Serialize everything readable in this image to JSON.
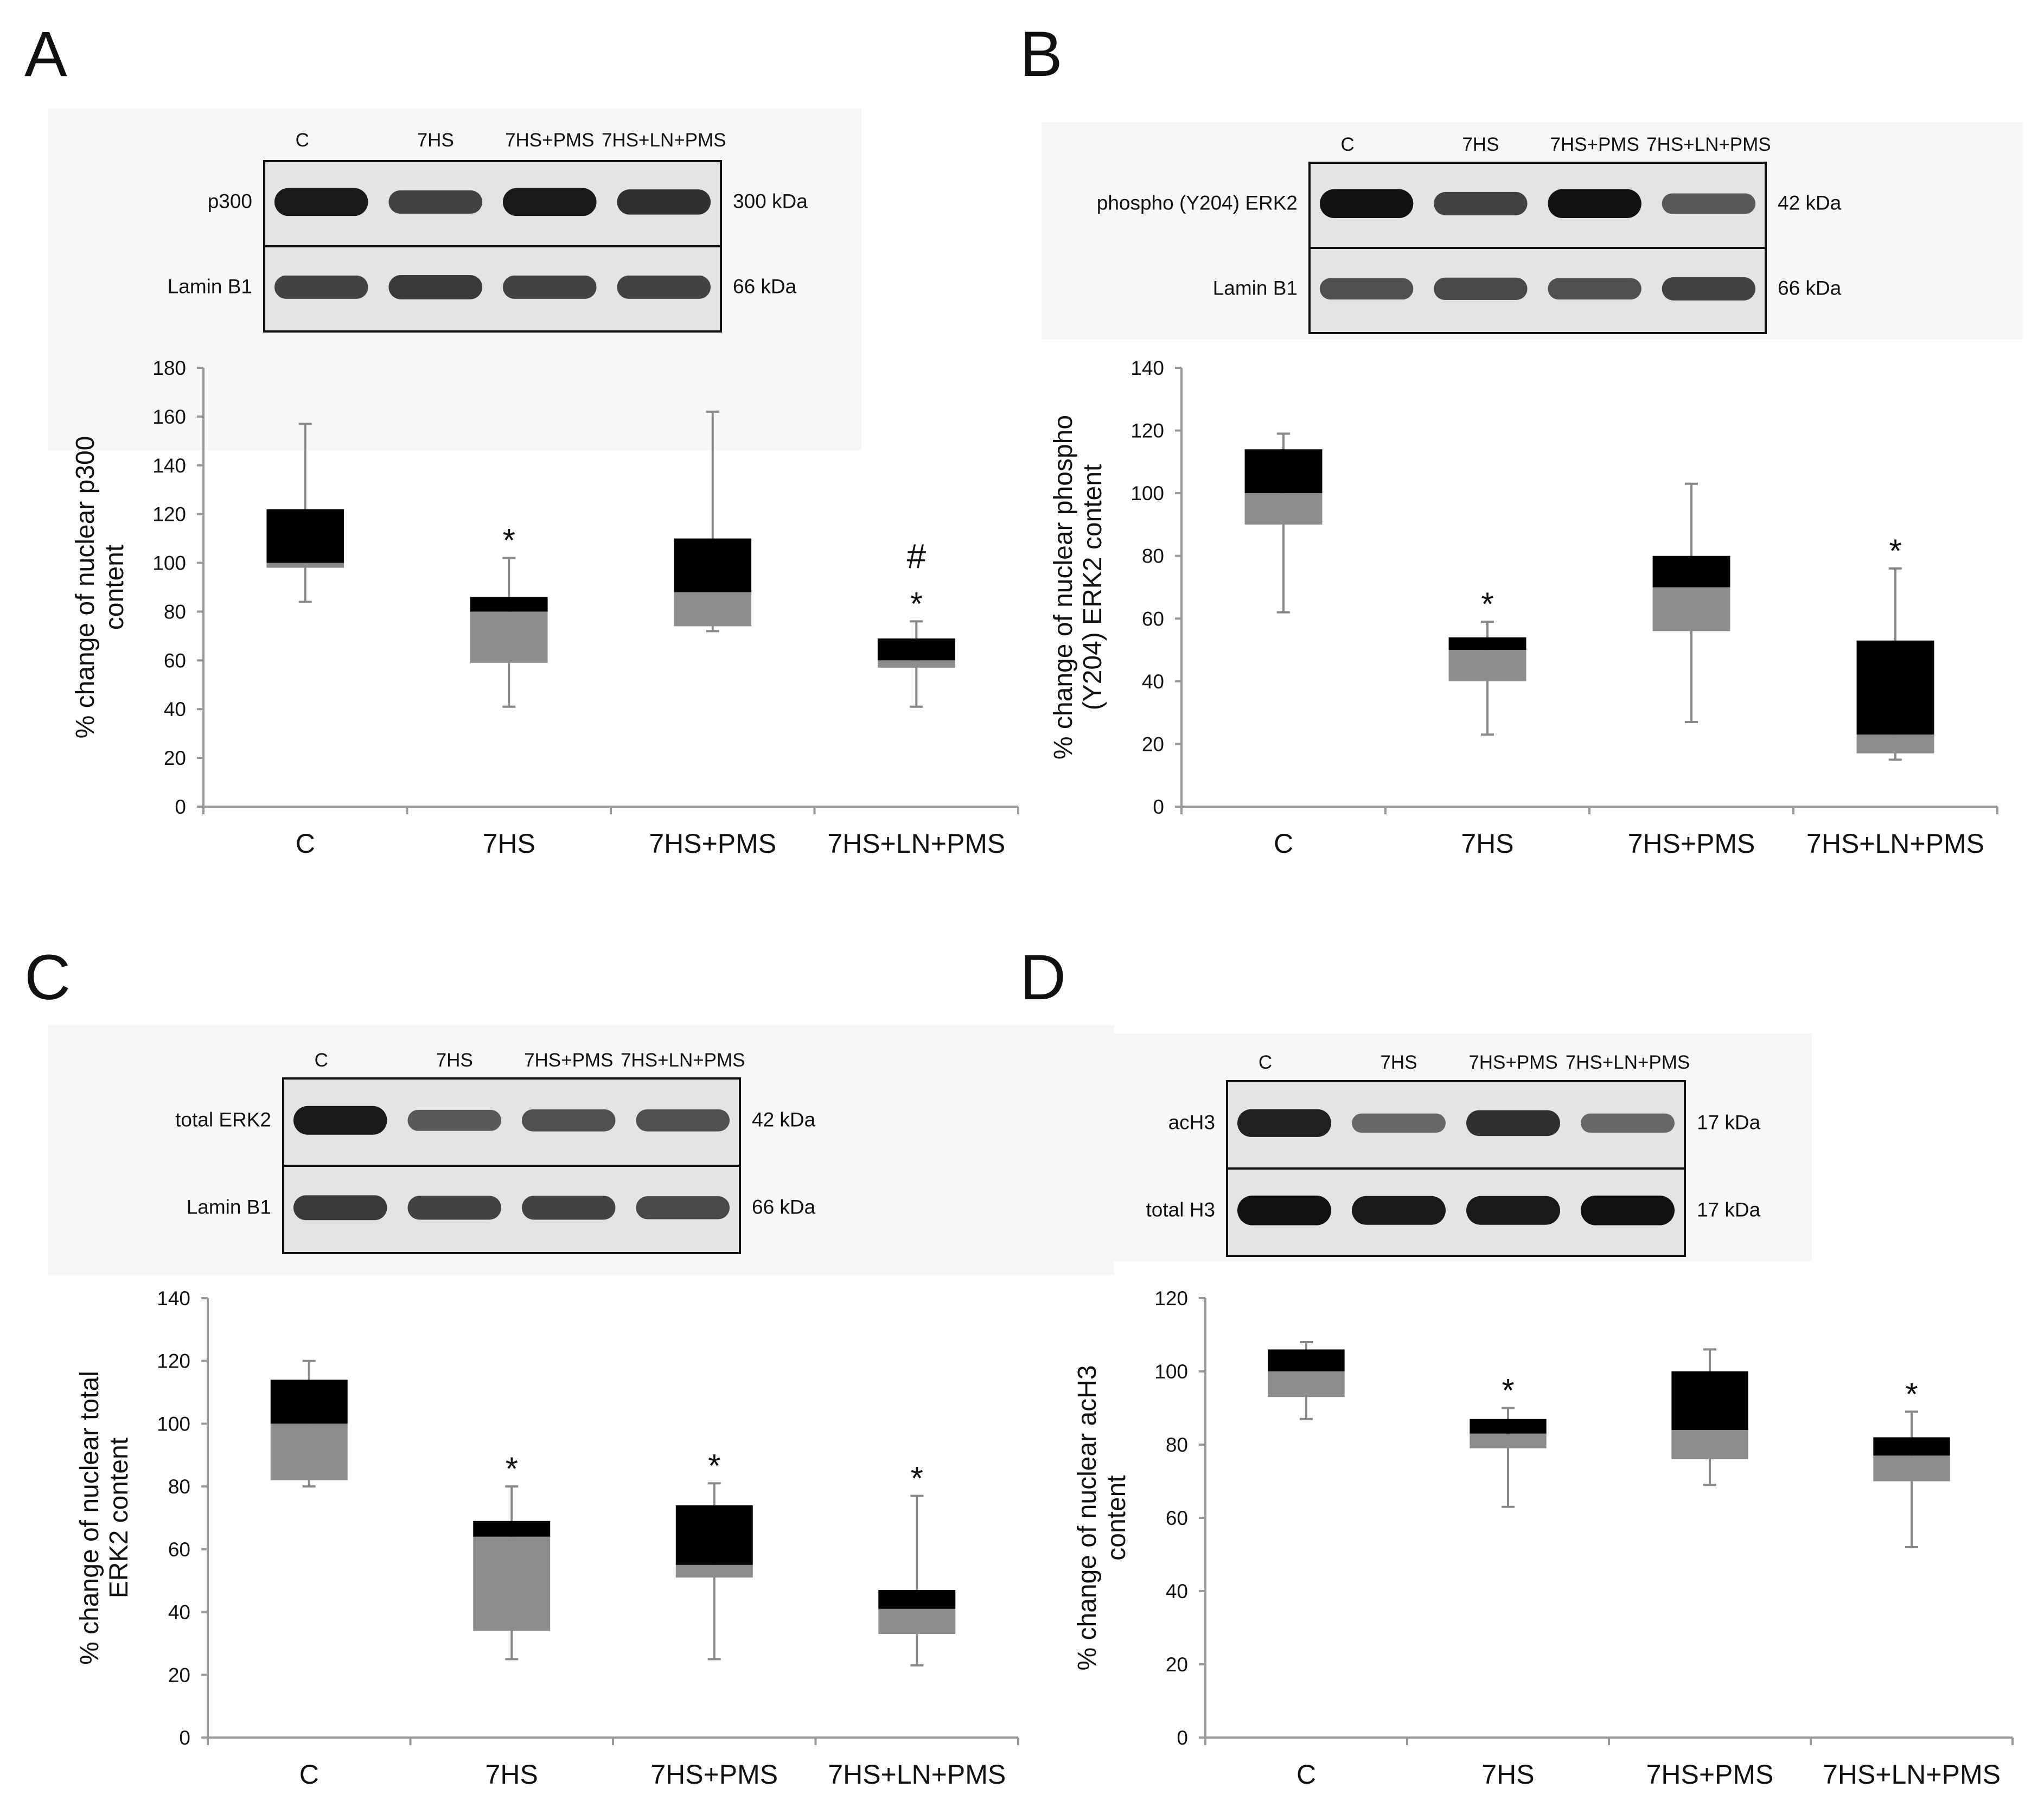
{
  "colors": {
    "q3_fill": "#000000",
    "q1_fill": "#8c8c8c",
    "axis": "#999999",
    "whisker": "#888888",
    "blot_bg": "#f7f7f7",
    "blot_lane_bg": "#e4e4e4",
    "band": "#111111"
  },
  "panels": [
    {
      "letter": "A",
      "lanes": [
        "C",
        "7HS",
        "7HS+PMS",
        "7HS+LN+PMS"
      ],
      "blot_rows": [
        {
          "protein": "p300",
          "kda": "300 kDa",
          "intensity": [
            0.95,
            0.7,
            0.95,
            0.8
          ]
        },
        {
          "protein": "Lamin B1",
          "kda": "66 kDa",
          "intensity": [
            0.7,
            0.75,
            0.7,
            0.7
          ]
        }
      ]
    },
    {
      "letter": "B",
      "lanes": [
        "C",
        "7HS",
        "7HS+PMS",
        "7HS+LN+PMS"
      ],
      "blot_rows": [
        {
          "protein": "phospho (Y204) ERK2",
          "kda": "42 kDa",
          "intensity": [
            1.0,
            0.7,
            1.0,
            0.55
          ]
        },
        {
          "protein": "Lamin B1",
          "kda": "66 kDa",
          "intensity": [
            0.6,
            0.65,
            0.6,
            0.7
          ]
        }
      ]
    },
    {
      "letter": "C",
      "lanes": [
        "C",
        "7HS",
        "7HS+PMS",
        "7HS+LN+PMS"
      ],
      "blot_rows": [
        {
          "protein": "total ERK2",
          "kda": "42 kDa",
          "intensity": [
            0.95,
            0.55,
            0.6,
            0.6
          ]
        },
        {
          "protein": "Lamin B1",
          "kda": "66 kDa",
          "intensity": [
            0.75,
            0.7,
            0.7,
            0.65
          ]
        }
      ]
    },
    {
      "letter": "D",
      "lanes": [
        "C",
        "7HS",
        "7HS+PMS",
        "7HS+LN+PMS"
      ],
      "blot_rows": [
        {
          "protein": "acH3",
          "kda": "17 kDa",
          "intensity": [
            0.9,
            0.45,
            0.8,
            0.45
          ]
        },
        {
          "protein": "total H3",
          "kda": "17 kDa",
          "intensity": [
            1.0,
            0.95,
            0.95,
            1.0
          ]
        }
      ]
    }
  ],
  "chart_data": [
    {
      "type": "box",
      "panel": "A",
      "ylabel_lines": [
        "% change of nuclear p300",
        "content"
      ],
      "ylim": [
        0,
        180
      ],
      "yticks": [
        0,
        20,
        40,
        60,
        80,
        100,
        120,
        140,
        160,
        180
      ],
      "categories": [
        "C",
        "7HS",
        "7HS+PMS",
        "7HS+LN+PMS"
      ],
      "boxes": [
        {
          "min": 84,
          "q1": 98,
          "median": 100,
          "q3": 122,
          "max": 157,
          "marks": []
        },
        {
          "min": 41,
          "q1": 59,
          "median": 80,
          "q3": 86,
          "max": 102,
          "marks": [
            "*"
          ]
        },
        {
          "min": 72,
          "q1": 74,
          "median": 88,
          "q3": 110,
          "max": 162,
          "marks": []
        },
        {
          "min": 41,
          "q1": 57,
          "median": 60,
          "q3": 69,
          "max": 76,
          "marks": [
            "*",
            "#"
          ]
        }
      ]
    },
    {
      "type": "box",
      "panel": "B",
      "ylabel_lines": [
        "% change of nuclear phospho",
        "(Y204) ERK2 content"
      ],
      "ylim": [
        0,
        140
      ],
      "yticks": [
        0,
        20,
        40,
        60,
        80,
        100,
        120,
        140
      ],
      "categories": [
        "C",
        "7HS",
        "7HS+PMS",
        "7HS+LN+PMS"
      ],
      "boxes": [
        {
          "min": 62,
          "q1": 90,
          "median": 100,
          "q3": 114,
          "max": 119,
          "marks": []
        },
        {
          "min": 23,
          "q1": 40,
          "median": 50,
          "q3": 54,
          "max": 59,
          "marks": [
            "*"
          ]
        },
        {
          "min": 27,
          "q1": 56,
          "median": 70,
          "q3": 80,
          "max": 103,
          "marks": []
        },
        {
          "min": 15,
          "q1": 17,
          "median": 23,
          "q3": 53,
          "max": 76,
          "marks": [
            "*"
          ]
        }
      ]
    },
    {
      "type": "box",
      "panel": "C",
      "ylabel_lines": [
        "% change of nuclear total",
        "ERK2  content"
      ],
      "ylim": [
        0,
        140
      ],
      "yticks": [
        0,
        20,
        40,
        60,
        80,
        100,
        120,
        140
      ],
      "categories": [
        "C",
        "7HS",
        "7HS+PMS",
        "7HS+LN+PMS"
      ],
      "boxes": [
        {
          "min": 80,
          "q1": 82,
          "median": 100,
          "q3": 114,
          "max": 120,
          "marks": []
        },
        {
          "min": 25,
          "q1": 34,
          "median": 64,
          "q3": 69,
          "max": 80,
          "marks": [
            "*"
          ]
        },
        {
          "min": 25,
          "q1": 51,
          "median": 55,
          "q3": 74,
          "max": 81,
          "marks": [
            "*"
          ]
        },
        {
          "min": 23,
          "q1": 33,
          "median": 41,
          "q3": 47,
          "max": 77,
          "marks": [
            "*"
          ]
        }
      ]
    },
    {
      "type": "box",
      "panel": "D",
      "ylabel_lines": [
        "% change of nuclear acH3",
        "content"
      ],
      "ylim": [
        0,
        120
      ],
      "yticks": [
        0,
        20,
        40,
        60,
        80,
        100,
        120
      ],
      "categories": [
        "C",
        "7HS",
        "7HS+PMS",
        "7HS+LN+PMS"
      ],
      "boxes": [
        {
          "min": 87,
          "q1": 93,
          "median": 100,
          "q3": 106,
          "max": 108,
          "marks": []
        },
        {
          "min": 63,
          "q1": 79,
          "median": 83,
          "q3": 87,
          "max": 90,
          "marks": [
            "*"
          ]
        },
        {
          "min": 69,
          "q1": 76,
          "median": 84,
          "q3": 100,
          "max": 106,
          "marks": []
        },
        {
          "min": 52,
          "q1": 70,
          "median": 77,
          "q3": 82,
          "max": 89,
          "marks": [
            "*"
          ]
        }
      ]
    }
  ]
}
